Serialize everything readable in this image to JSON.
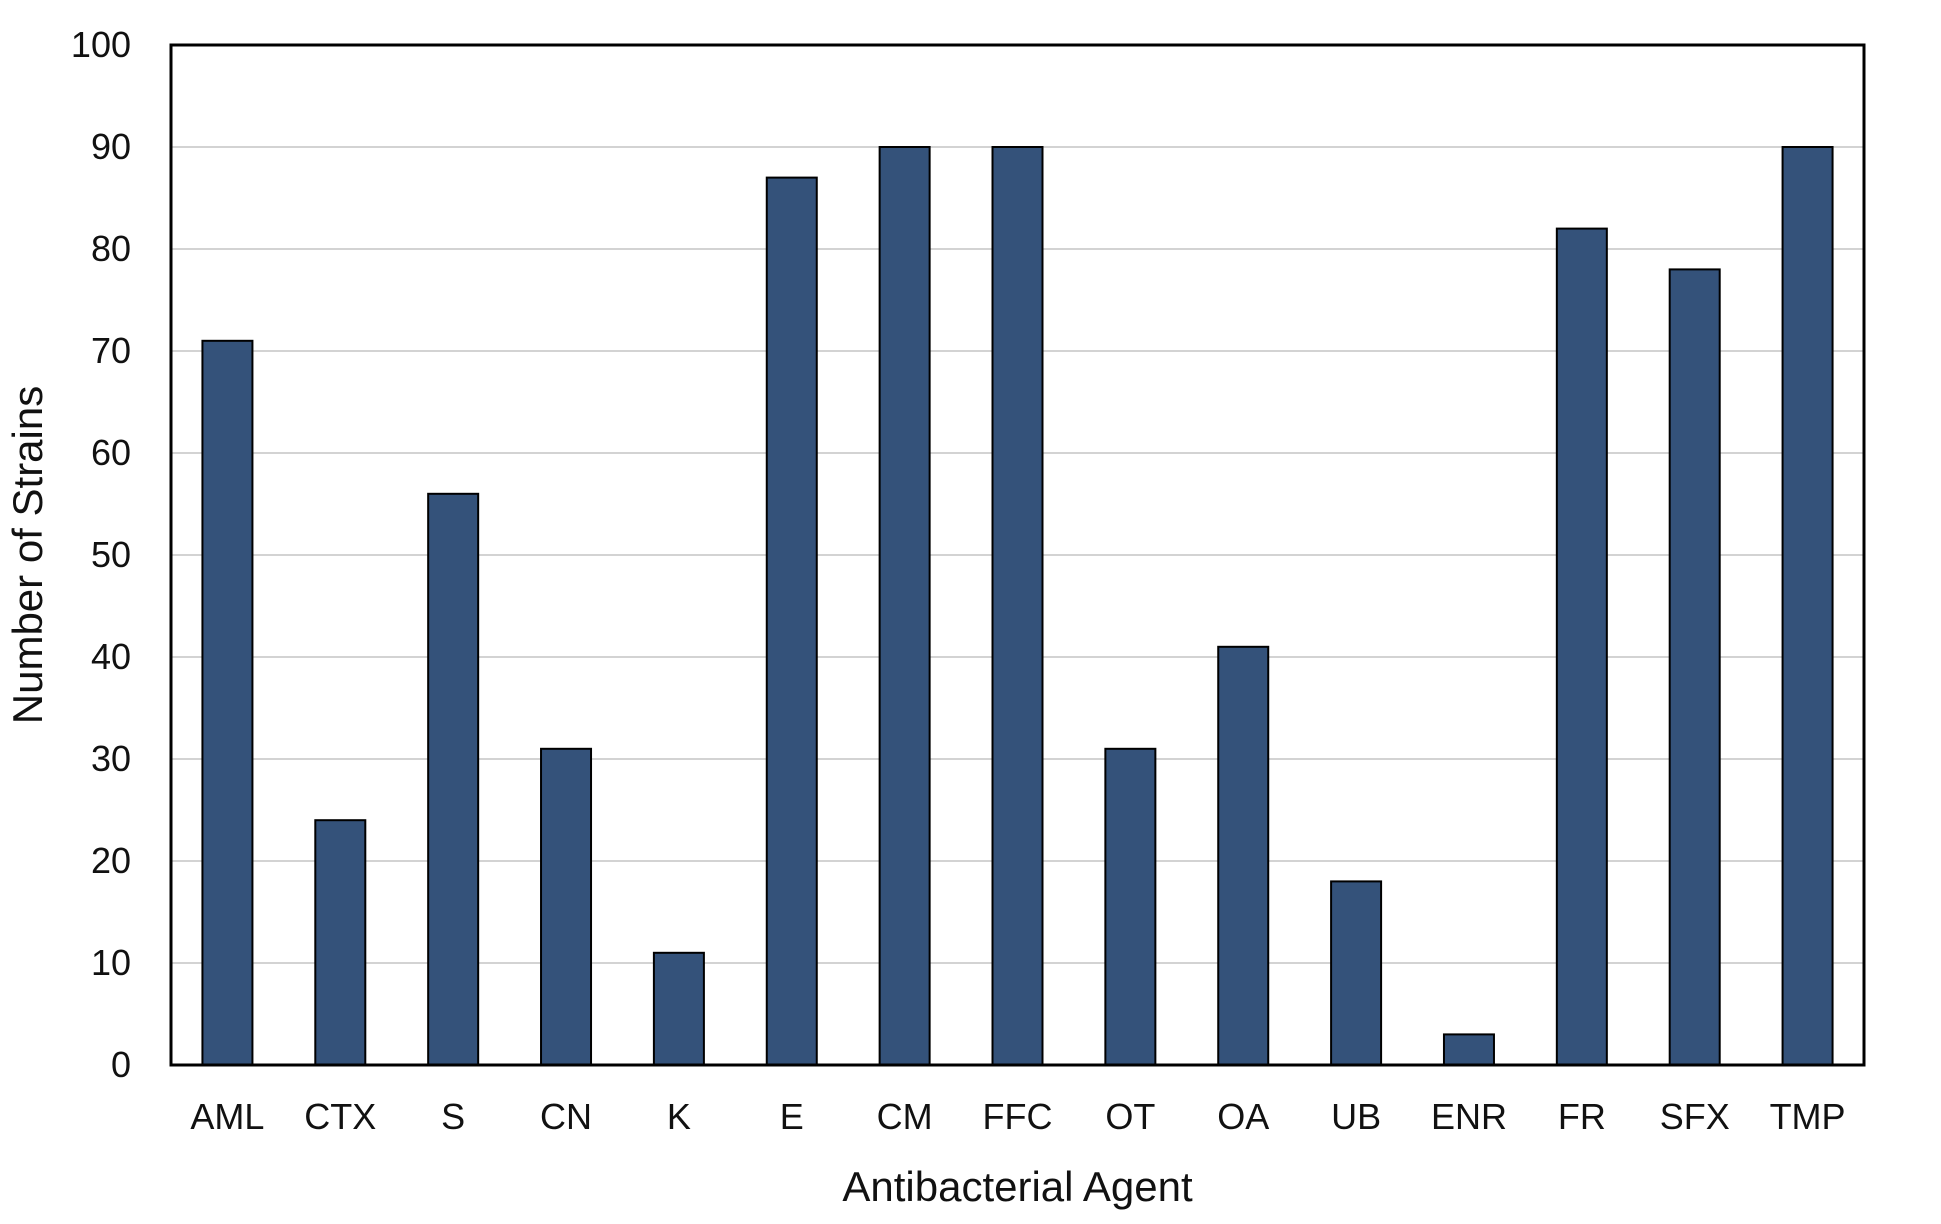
{
  "chart_data": {
    "type": "bar",
    "title": "",
    "xlabel": "Antibacterial Agent",
    "ylabel": "Number of Strains",
    "categories": [
      "AML",
      "CTX",
      "S",
      "CN",
      "K",
      "E",
      "CM",
      "FFC",
      "OT",
      "OA",
      "UB",
      "ENR",
      "FR",
      "SFX",
      "TMP"
    ],
    "values": [
      71,
      24,
      56,
      31,
      11,
      87,
      90,
      90,
      31,
      41,
      18,
      3,
      82,
      78,
      90
    ],
    "ylim": [
      0,
      100
    ],
    "yticks": [
      "0",
      "10",
      "20",
      "30",
      "40",
      "50",
      "60",
      "70",
      "80",
      "90",
      "100"
    ],
    "grid": true,
    "legend": "none",
    "colors": {
      "bar": "#34527a",
      "bar_edge": "#000000",
      "grid": "#d3d3d3",
      "frame": "#000000"
    }
  }
}
